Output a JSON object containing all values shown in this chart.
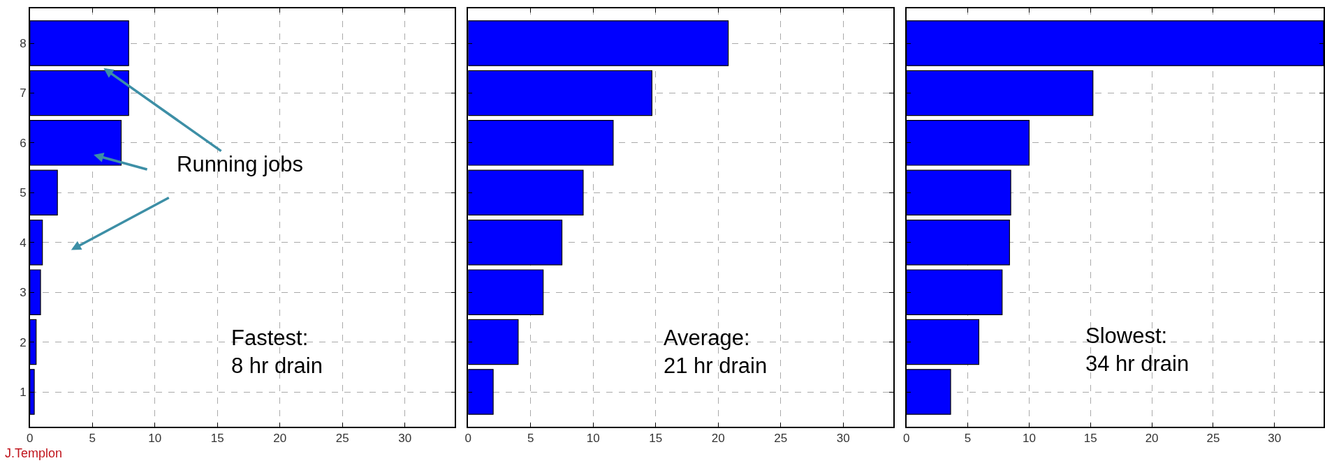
{
  "chart_data": [
    {
      "type": "bar",
      "orientation": "horizontal",
      "x": [
        1,
        2,
        3,
        4,
        5,
        6,
        7,
        8
      ],
      "values": [
        0.35,
        0.5,
        0.85,
        1.0,
        2.2,
        7.3,
        7.9,
        7.9
      ],
      "color": "#0000ff",
      "xlim": [
        0,
        34
      ],
      "xticks": [
        0,
        5,
        10,
        15,
        20,
        25,
        30
      ],
      "ylim": [
        0.3,
        8.7
      ],
      "yticks": [
        1,
        2,
        3,
        4,
        5,
        6,
        7,
        8
      ],
      "grid": true,
      "annotations": [
        {
          "text": "Running jobs",
          "x": 5.9,
          "y": 7.5
        },
        "Fastest:\n8 hr drain",
        "J.Templon"
      ]
    },
    {
      "type": "bar",
      "orientation": "horizontal",
      "x": [
        1,
        2,
        3,
        4,
        5,
        6,
        7,
        8
      ],
      "values": [
        2.0,
        4.0,
        6.0,
        7.5,
        9.2,
        11.6,
        14.7,
        20.8
      ],
      "color": "#0000ff",
      "xlim": [
        0,
        34
      ],
      "xticks": [
        0,
        5,
        10,
        15,
        20,
        25,
        30
      ],
      "ylim": [
        0.3,
        8.7
      ],
      "yticks": [
        1,
        2,
        3,
        4,
        5,
        6,
        7,
        8
      ],
      "grid": true,
      "tick_labels": "x",
      "annotations": [
        "Average:\n21 hr drain"
      ]
    },
    {
      "type": "bar",
      "orientation": "horizontal",
      "x": [
        1,
        2,
        3,
        4,
        5,
        6,
        7,
        8
      ],
      "values": [
        3.6,
        5.9,
        7.8,
        8.4,
        8.5,
        10.0,
        15.2,
        34
      ],
      "color": "#0000ff",
      "xlim": [
        0,
        34
      ],
      "xticks": [
        0,
        5,
        10,
        15,
        20,
        25,
        30
      ],
      "ylim": [
        0.3,
        8.7
      ],
      "yticks": [
        1,
        2,
        3,
        4,
        5,
        6,
        7,
        8
      ],
      "grid": true,
      "tick_labels": "x",
      "annotations": [
        "Slowest:\n34 hr drain"
      ]
    }
  ]
}
